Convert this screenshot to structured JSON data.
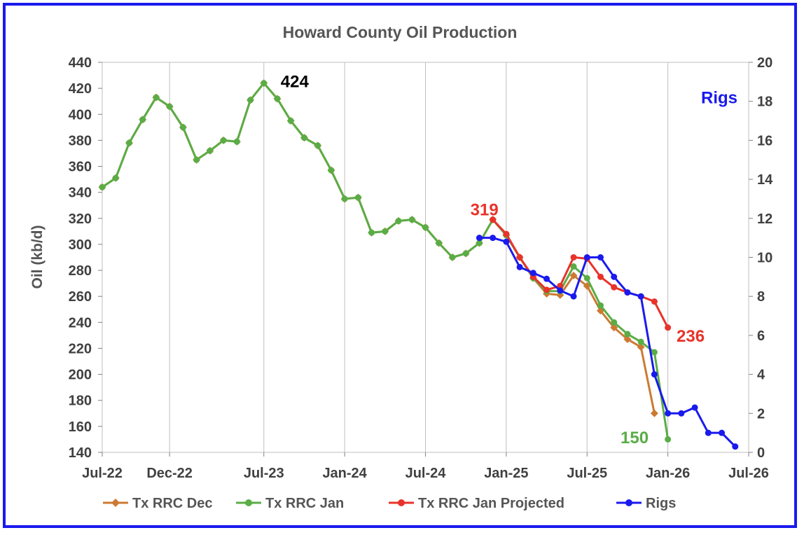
{
  "chart_data": {
    "type": "line",
    "title": "Howard County Oil Production",
    "ylabel": "Oil (kb/d)",
    "y2label": "Rigs",
    "ylim": [
      140,
      440
    ],
    "yticks": [
      140,
      160,
      180,
      200,
      220,
      240,
      260,
      280,
      300,
      320,
      340,
      360,
      380,
      400,
      420,
      440
    ],
    "y2lim": [
      0,
      20
    ],
    "y2ticks": [
      0,
      2,
      4,
      6,
      8,
      10,
      12,
      14,
      16,
      18,
      20
    ],
    "xticks": [
      "Jul-22",
      "Dec-22",
      "Jul-23",
      "Jan-24",
      "Jul-24",
      "Jan-25",
      "Jul-25",
      "Jan-26",
      "Jul-26"
    ],
    "xtick_dates": [
      "2022-07",
      "2022-12",
      "2023-07",
      "2024-01",
      "2024-07",
      "2025-01",
      "2025-07",
      "2026-01",
      "2026-07"
    ],
    "grid": "vertical",
    "legend_position": "bottom",
    "series": [
      {
        "name": "Tx RRC Dec",
        "color": "#cc7a33",
        "marker": "diamond",
        "axis": "left",
        "x": [
          "2022-07",
          "2022-08",
          "2022-09",
          "2022-10",
          "2022-11",
          "2022-12",
          "2023-01",
          "2023-02",
          "2023-03",
          "2023-04",
          "2023-05",
          "2023-06",
          "2023-07",
          "2023-08",
          "2023-09",
          "2023-10",
          "2023-11",
          "2023-12",
          "2024-01",
          "2024-02",
          "2024-03",
          "2024-04",
          "2024-05",
          "2024-06",
          "2024-07",
          "2024-08",
          "2024-09",
          "2024-10",
          "2024-11",
          "2024-12",
          "2025-01",
          "2025-02",
          "2025-03",
          "2025-04",
          "2025-05",
          "2025-06",
          "2025-07",
          "2025-08",
          "2025-09",
          "2025-10",
          "2025-11",
          "2025-12"
        ],
        "values": [
          344,
          351,
          378,
          396,
          413,
          406,
          390,
          365,
          372,
          380,
          379,
          411,
          424,
          412,
          395,
          382,
          376,
          357,
          335,
          336,
          309,
          310,
          318,
          319,
          313,
          301,
          290,
          293,
          301,
          319,
          307,
          290,
          274,
          262,
          261,
          276,
          268,
          249,
          236,
          227,
          221,
          170
        ]
      },
      {
        "name": "Tx RRC Jan",
        "color": "#5aad46",
        "marker": "circle",
        "axis": "left",
        "x": [
          "2022-07",
          "2022-08",
          "2022-09",
          "2022-10",
          "2022-11",
          "2022-12",
          "2023-01",
          "2023-02",
          "2023-03",
          "2023-04",
          "2023-05",
          "2023-06",
          "2023-07",
          "2023-08",
          "2023-09",
          "2023-10",
          "2023-11",
          "2023-12",
          "2024-01",
          "2024-02",
          "2024-03",
          "2024-04",
          "2024-05",
          "2024-06",
          "2024-07",
          "2024-08",
          "2024-09",
          "2024-10",
          "2024-11",
          "2024-12",
          "2025-01",
          "2025-02",
          "2025-03",
          "2025-04",
          "2025-05",
          "2025-06",
          "2025-07",
          "2025-08",
          "2025-09",
          "2025-10",
          "2025-11",
          "2025-12",
          "2026-01"
        ],
        "values": [
          344,
          351,
          378,
          396,
          413,
          406,
          390,
          365,
          372,
          380,
          379,
          411,
          424,
          412,
          395,
          382,
          376,
          357,
          335,
          336,
          309,
          310,
          318,
          319,
          313,
          301,
          290,
          293,
          301,
          319,
          307,
          290,
          274,
          264,
          264,
          283,
          274,
          253,
          240,
          231,
          225,
          217,
          150
        ]
      },
      {
        "name": "Tx RRC Jan Projected",
        "color": "#e8332a",
        "marker": "circle",
        "axis": "left",
        "x": [
          "2024-12",
          "2025-01",
          "2025-02",
          "2025-03",
          "2025-04",
          "2025-05",
          "2025-06",
          "2025-07",
          "2025-08",
          "2025-09",
          "2025-10",
          "2025-11",
          "2025-12",
          "2026-01"
        ],
        "values": [
          319,
          308,
          290,
          275,
          265,
          268,
          290,
          289,
          275,
          267,
          263,
          260,
          256,
          236
        ]
      },
      {
        "name": "Rigs",
        "color": "#1a1aee",
        "marker": "circle",
        "axis": "right",
        "x": [
          "2024-11",
          "2024-12",
          "2025-01",
          "2025-02",
          "2025-03",
          "2025-04",
          "2025-05",
          "2025-06",
          "2025-07",
          "2025-08",
          "2025-09",
          "2025-10",
          "2025-11",
          "2025-12",
          "2026-01",
          "2026-02",
          "2026-03",
          "2026-04",
          "2026-05",
          "2026-06"
        ],
        "values": [
          11,
          11,
          10.8,
          9.5,
          9.2,
          8.9,
          8.3,
          8,
          10,
          10,
          9,
          8.2,
          8,
          4,
          2,
          2,
          2.3,
          1,
          1,
          0.3
        ]
      }
    ],
    "annotations": [
      {
        "text": "424",
        "color": "#000000",
        "x": "2023-07",
        "value": 424,
        "axis": "left"
      },
      {
        "text": "319",
        "color": "#e8332a",
        "x": "2024-12",
        "value": 319,
        "axis": "left"
      },
      {
        "text": "Rigs",
        "color": "#1a1aee",
        "x": "2026-01",
        "value": 18,
        "axis": "right"
      },
      {
        "text": "236",
        "color": "#e8332a",
        "x": "2026-01",
        "value": 236,
        "axis": "left"
      },
      {
        "text": "150",
        "color": "#5aad46",
        "x": "2026-01",
        "value": 150,
        "axis": "left"
      }
    ]
  }
}
